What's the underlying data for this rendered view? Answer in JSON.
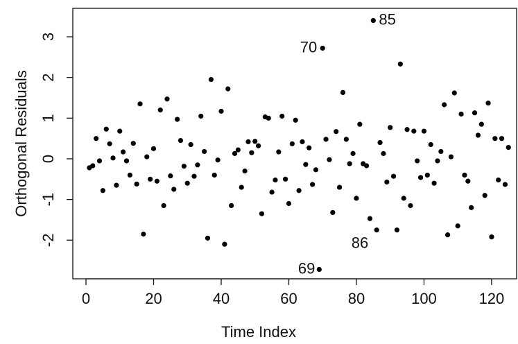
{
  "chart_data": {
    "type": "scatter",
    "xlabel": "Time Index",
    "ylabel": "Orthogonal Residuals",
    "x": [
      1,
      2,
      3,
      4,
      5,
      6,
      7,
      8,
      9,
      10,
      11,
      12,
      13,
      14,
      15,
      16,
      17,
      18,
      19,
      20,
      21,
      22,
      23,
      24,
      25,
      26,
      27,
      28,
      29,
      30,
      31,
      32,
      33,
      34,
      35,
      36,
      37,
      38,
      39,
      40,
      41,
      42,
      43,
      44,
      45,
      46,
      47,
      48,
      49,
      50,
      51,
      52,
      53,
      54,
      55,
      56,
      57,
      58,
      59,
      60,
      61,
      62,
      63,
      64,
      65,
      66,
      67,
      68,
      69,
      70,
      71,
      72,
      73,
      74,
      75,
      76,
      77,
      78,
      79,
      80,
      81,
      82,
      83,
      84,
      85,
      86,
      87,
      88,
      89,
      90,
      91,
      92,
      93,
      94,
      95,
      96,
      97,
      98,
      99,
      100,
      101,
      102,
      103,
      104,
      105,
      106,
      107,
      108,
      109,
      110,
      111,
      112,
      113,
      114,
      115,
      116,
      117,
      118,
      119,
      120,
      121,
      122,
      123,
      124,
      125
    ],
    "values": [
      -0.22,
      -0.17,
      0.5,
      -0.05,
      -0.78,
      0.73,
      0.37,
      0.02,
      -0.65,
      0.68,
      0.17,
      -0.05,
      -0.4,
      0.38,
      -0.62,
      1.35,
      -1.85,
      0.05,
      -0.5,
      0.25,
      -0.55,
      1.2,
      -1.15,
      1.47,
      -0.42,
      -0.75,
      0.97,
      0.45,
      -0.18,
      -0.6,
      0.35,
      -0.43,
      -0.15,
      1.05,
      0.18,
      -1.95,
      1.95,
      -0.4,
      -0.03,
      1.17,
      -2.1,
      1.72,
      -1.15,
      0.13,
      0.22,
      -0.7,
      -0.3,
      0.42,
      0.15,
      0.43,
      0.32,
      -1.35,
      1.03,
      1.0,
      -0.82,
      -0.52,
      0.17,
      1.05,
      -0.5,
      -1.1,
      0.37,
      0.95,
      -0.78,
      0.42,
      -0.14,
      0.27,
      -0.63,
      -0.27,
      -2.72,
      2.72,
      0.48,
      -0.02,
      -1.32,
      0.67,
      -0.7,
      1.63,
      0.48,
      -0.12,
      0.13,
      -0.97,
      0.85,
      -0.12,
      -0.17,
      -1.47,
      3.4,
      -1.75,
      0.4,
      0.13,
      -0.57,
      0.77,
      -0.43,
      -1.75,
      2.33,
      -0.97,
      0.72,
      -1.15,
      0.68,
      -0.05,
      -0.46,
      0.68,
      -0.4,
      0.35,
      -0.6,
      -0.05,
      0.18,
      1.33,
      -1.87,
      0.05,
      1.62,
      -1.65,
      1.1,
      -0.4,
      -0.55,
      -1.2,
      1.13,
      0.58,
      0.85,
      -0.9,
      1.37,
      -1.92,
      0.5,
      -0.52,
      0.5,
      -0.63,
      0.28
    ],
    "color": "#000000",
    "annotations": [
      {
        "text": "85",
        "x": 85,
        "y": 3.4
      },
      {
        "text": "70",
        "x": 70,
        "y": 2.72
      },
      {
        "text": "86",
        "x": 86,
        "y": -1.75
      },
      {
        "text": "69",
        "x": 69,
        "y": -2.72
      }
    ],
    "xlim": [
      -3.9,
      127.4
    ],
    "ylim": [
      -2.95,
      3.7
    ],
    "xticks": [
      0,
      20,
      40,
      60,
      80,
      100,
      120
    ],
    "yticks": [
      -2,
      -1,
      0,
      1,
      2,
      3
    ]
  }
}
